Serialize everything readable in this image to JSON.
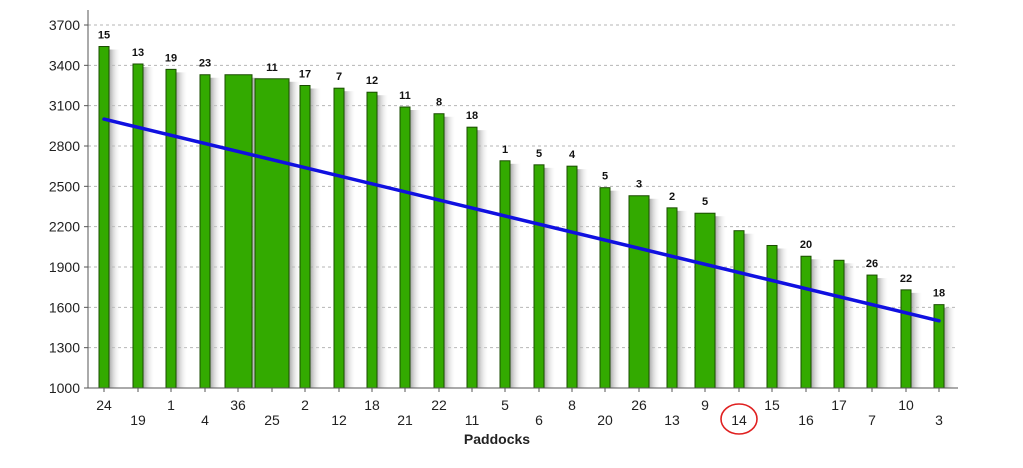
{
  "chart_data": {
    "type": "bar",
    "xlabel": "Paddocks",
    "ylabel": "",
    "ylim": [
      1000,
      3700
    ],
    "yticks": [
      1000,
      1300,
      1600,
      1900,
      2200,
      2500,
      2800,
      3100,
      3400,
      3700
    ],
    "grid": true,
    "colors": {
      "bar": "#33aa00",
      "bar_border": "#1a4d00",
      "trend": "#1010e0",
      "highlight": "#e02020"
    },
    "categories": [
      "24",
      "19",
      "1",
      "4",
      "36",
      "25",
      "2",
      "12",
      "18",
      "21",
      "22",
      "11",
      "5",
      "6",
      "8",
      "20",
      "26",
      "13",
      "9",
      "14",
      "15",
      "16",
      "17",
      "7",
      "10",
      "3"
    ],
    "values": [
      3540,
      3410,
      3370,
      3330,
      3330,
      3300,
      3250,
      3230,
      3200,
      3090,
      3040,
      2940,
      2690,
      2660,
      2650,
      2490,
      2430,
      2340,
      2300,
      2170,
      2060,
      1980,
      1950,
      1840,
      1730,
      1620
    ],
    "bar_labels": [
      "15",
      "13",
      "19",
      "23",
      "",
      "11",
      "17",
      "7",
      "12",
      "11",
      "8",
      "18",
      "1",
      "5",
      "4",
      "5",
      "3",
      "2",
      "5",
      "",
      "",
      "20",
      "",
      "26",
      "22",
      "18"
    ],
    "bar_widths": [
      "narrow",
      "narrow",
      "narrow",
      "narrow",
      "wide",
      "wide",
      "narrow",
      "narrow",
      "narrow",
      "narrow",
      "narrow",
      "narrow",
      "narrow",
      "narrow",
      "narrow",
      "narrow",
      "medium",
      "narrow",
      "medium",
      "narrow",
      "narrow",
      "narrow",
      "narrow",
      "narrow",
      "narrow",
      "narrow"
    ],
    "trend_line": {
      "start": 3000,
      "end": 1500
    },
    "highlighted_category": "14"
  }
}
